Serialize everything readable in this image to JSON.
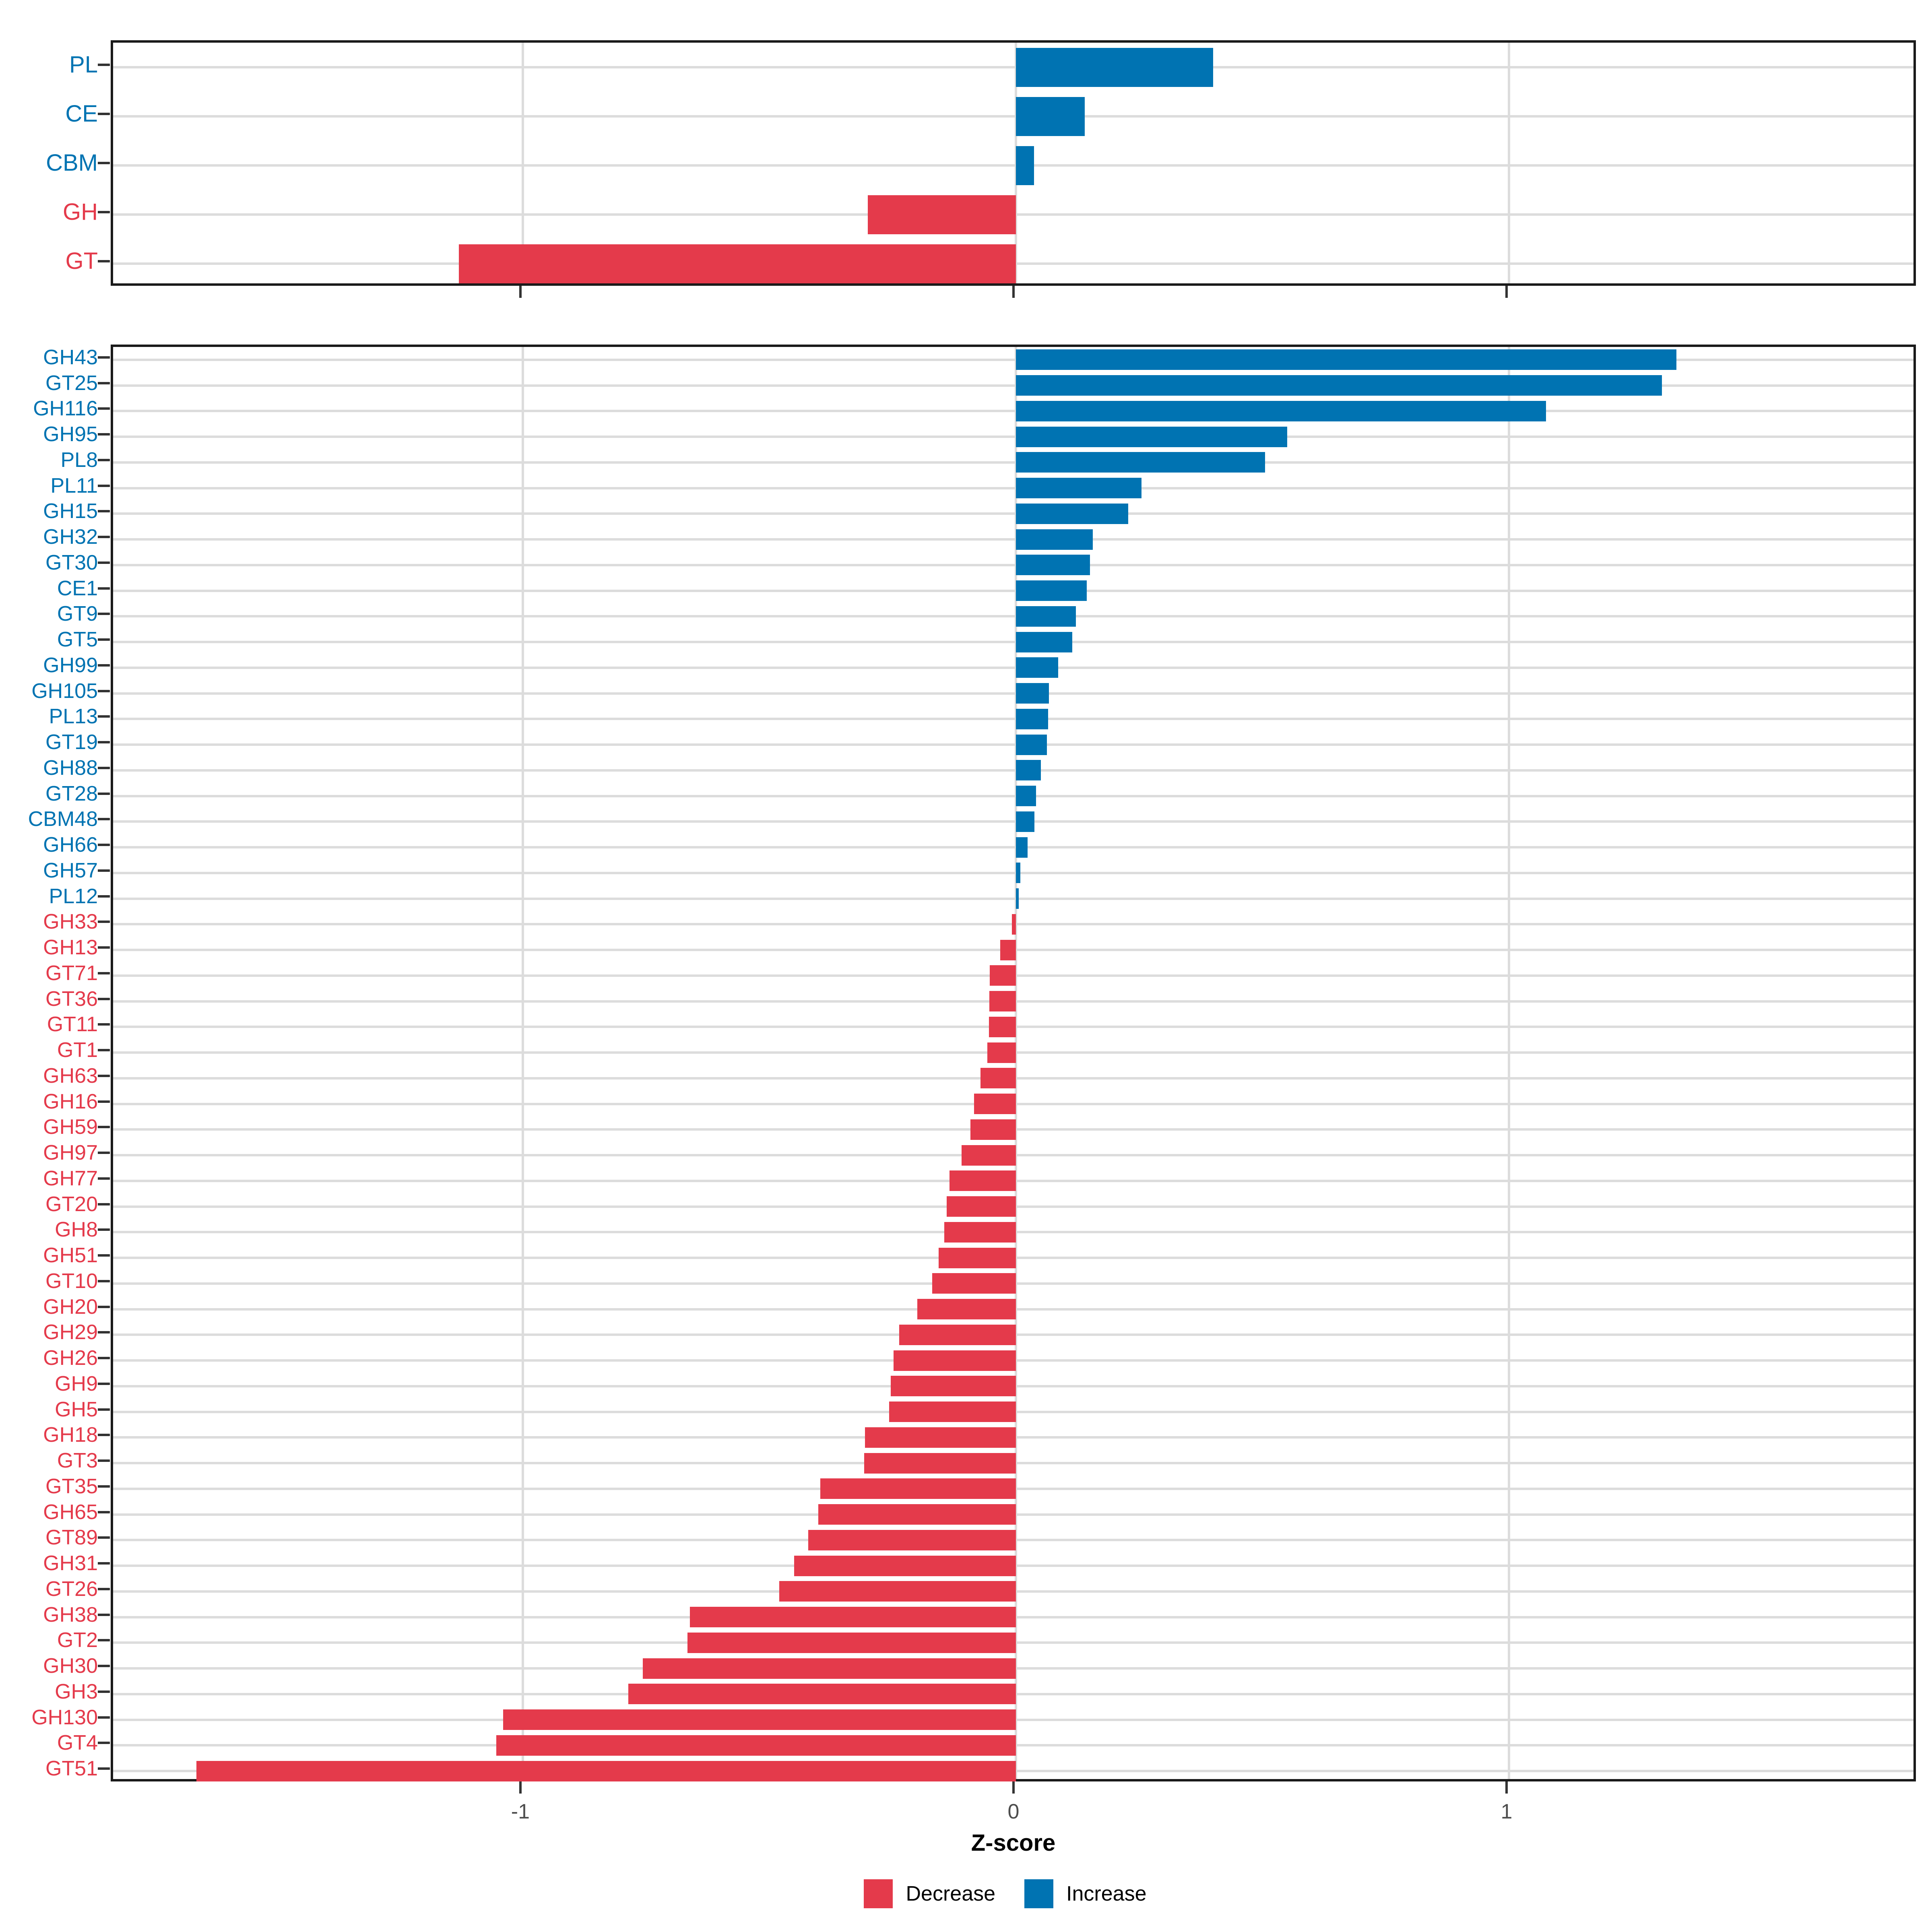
{
  "colors": {
    "increase": "#0073B2",
    "decrease": "#E43A4B",
    "gridline": "#DCDCDC",
    "panel_border": "#1A1A1A",
    "tick_mark": "#333333",
    "axis_text": "#4D4D4D"
  },
  "axis": {
    "title": "Z-score",
    "tick_labels": [
      "-1",
      "0",
      "1"
    ],
    "tick_values": [
      -1,
      0,
      1
    ],
    "xlim": [
      -1.83,
      1.83
    ]
  },
  "legend": {
    "items": [
      {
        "label": "Decrease",
        "direction": "decrease"
      },
      {
        "label": "Increase",
        "direction": "increase"
      }
    ]
  },
  "chart_data": [
    {
      "id": "enzyme-class-panel",
      "type": "bar",
      "orientation": "horizontal",
      "title": "",
      "xlabel": "Z-score",
      "xlim": [
        -1.83,
        1.83
      ],
      "grid": "on",
      "legend_position": "bottom",
      "categories": [
        "PL",
        "CE",
        "CBM",
        "GH",
        "GT"
      ],
      "values": [
        0.4,
        0.14,
        0.037,
        -0.3,
        -1.13
      ]
    },
    {
      "id": "enzyme-family-panel",
      "type": "bar",
      "orientation": "horizontal",
      "title": "",
      "xlabel": "Z-score",
      "xlim": [
        -1.83,
        1.83
      ],
      "grid": "on",
      "legend_position": "bottom",
      "categories": [
        "GH43",
        "GT25",
        "GH116",
        "GH95",
        "PL8",
        "PL11",
        "GH15",
        "GH32",
        "GT30",
        "CE1",
        "GT9",
        "GT5",
        "GH99",
        "GH105",
        "PL13",
        "GT19",
        "GH88",
        "GT28",
        "CBM48",
        "GH66",
        "GH57",
        "PL12",
        "GH33",
        "GH13",
        "GT71",
        "GT36",
        "GT11",
        "GT1",
        "GH63",
        "GH16",
        "GH59",
        "GH97",
        "GH77",
        "GT20",
        "GH8",
        "GH51",
        "GT10",
        "GH20",
        "GH29",
        "GH26",
        "GH9",
        "GH5",
        "GH18",
        "GT3",
        "GT35",
        "GH65",
        "GT89",
        "GH31",
        "GT26",
        "GH38",
        "GT2",
        "GH30",
        "GH3",
        "GH130",
        "GT4",
        "GT51"
      ],
      "values": [
        1.34,
        1.31,
        1.075,
        0.55,
        0.505,
        0.255,
        0.228,
        0.156,
        0.15,
        0.144,
        0.122,
        0.114,
        0.086,
        0.067,
        0.065,
        0.063,
        0.051,
        0.041,
        0.038,
        0.024,
        0.009,
        0.006,
        -0.008,
        -0.032,
        -0.053,
        -0.054,
        -0.055,
        -0.058,
        -0.072,
        -0.085,
        -0.092,
        -0.11,
        -0.135,
        -0.14,
        -0.145,
        -0.157,
        -0.17,
        -0.2,
        -0.237,
        -0.248,
        -0.254,
        -0.257,
        -0.306,
        -0.308,
        -0.397,
        -0.401,
        -0.421,
        -0.45,
        -0.48,
        -0.661,
        -0.666,
        -0.757,
        -0.786,
        -1.04,
        -1.054,
        -1.662
      ]
    }
  ]
}
